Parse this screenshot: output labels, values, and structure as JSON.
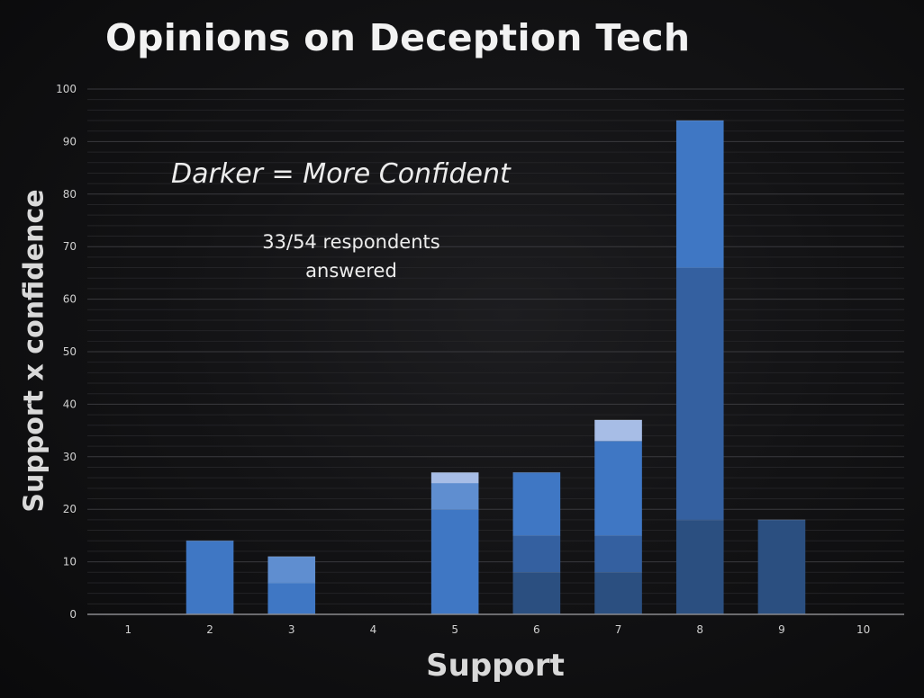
{
  "chart_data": {
    "type": "bar",
    "stacked": true,
    "title": "Opinions on Deception Tech",
    "xlabel": "Support",
    "ylabel": "Support x confidence",
    "ylim": [
      0,
      100
    ],
    "yticks": [
      "0",
      "10",
      "20",
      "30",
      "40",
      "50",
      "60",
      "70",
      "80",
      "90",
      "100"
    ],
    "categories": [
      "1",
      "2",
      "3",
      "4",
      "5",
      "6",
      "7",
      "8",
      "9",
      "10"
    ],
    "annotations": [
      "Darker = More Confident",
      "33/54 respondents answered"
    ],
    "grid": true,
    "series_colors": [
      "#2b4f80",
      "#3460a0",
      "#3f77c4",
      "#5f8ed0",
      "#a7bde6"
    ],
    "series": [
      {
        "values": [
          0,
          0,
          0,
          0,
          0,
          8,
          8,
          18,
          18,
          0
        ]
      },
      {
        "values": [
          0,
          0,
          0,
          0,
          0,
          7,
          7,
          48,
          0,
          0
        ]
      },
      {
        "values": [
          0,
          14,
          6,
          0,
          20,
          12,
          18,
          28,
          0,
          0
        ]
      },
      {
        "values": [
          0,
          0,
          5,
          0,
          5,
          0,
          0,
          0,
          0,
          0
        ]
      },
      {
        "values": [
          0,
          0,
          0,
          0,
          2,
          0,
          4,
          0,
          0,
          0
        ]
      }
    ]
  }
}
